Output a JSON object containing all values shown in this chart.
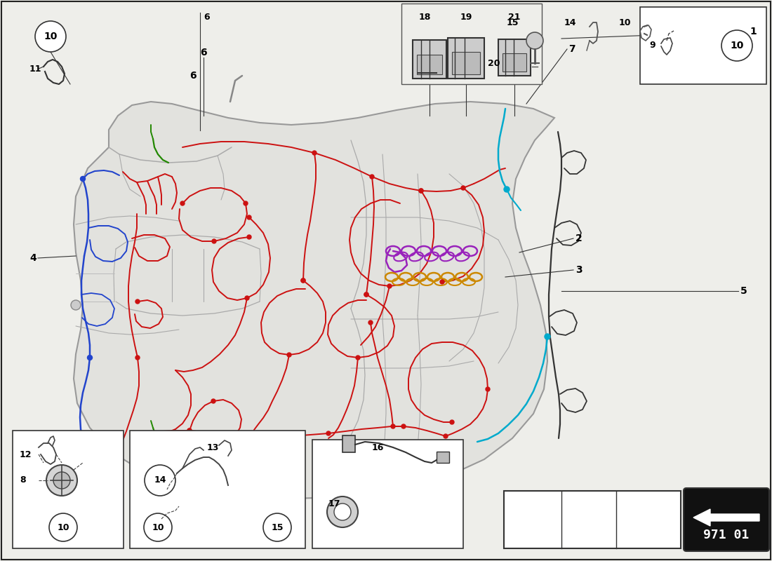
{
  "bg_color": "#eeeeea",
  "border_color": "#222222",
  "title_box": "971 01",
  "red_wire": "#cc1111",
  "blue_wire": "#2244cc",
  "cyan_wire": "#00aacc",
  "purple_wire": "#9922bb",
  "orange_wire": "#cc8800",
  "green_wire": "#228800",
  "dark_wire": "#222222",
  "car_edge": "#999999",
  "car_fill": "#e2e2de",
  "car_inner": "#aaaaaa",
  "label_fontsize": 10,
  "small_fontsize": 9
}
